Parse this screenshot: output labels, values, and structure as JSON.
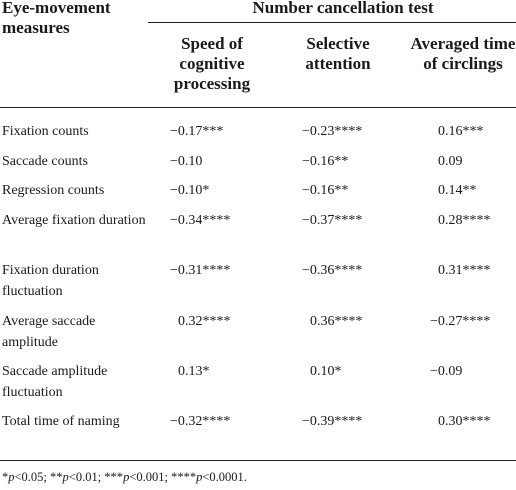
{
  "table": {
    "row_header": "Eye-movement measures",
    "group_header": "Number cancellation test",
    "columns": [
      "Speed of cognitive processing",
      "Selective attention",
      "Averaged time of circlings"
    ],
    "rows": [
      {
        "label": "Fixation counts",
        "values": [
          "−0.17***",
          "−0.23****",
          "0.16***"
        ]
      },
      {
        "label": "Saccade counts",
        "values": [
          "−0.10",
          "−0.16**",
          "0.09"
        ]
      },
      {
        "label": "Regression counts",
        "values": [
          "−0.10*",
          "−0.16**",
          "0.14**"
        ]
      },
      {
        "label": "Average fixation duration",
        "values": [
          "−0.34****",
          "−0.37****",
          "0.28****"
        ]
      },
      {
        "label": "Fixation duration fluctuation",
        "values": [
          "−0.31****",
          "−0.36****",
          "0.31****"
        ]
      },
      {
        "label": "Average saccade amplitude",
        "values": [
          "0.32****",
          "0.36****",
          "−0.27****"
        ]
      },
      {
        "label": "Saccade amplitude fluctuation",
        "values": [
          "0.13*",
          "0.10*",
          "−0.09"
        ]
      },
      {
        "label": "Total time of naming",
        "values": [
          "−0.32****",
          "−0.39****",
          "0.30****"
        ]
      }
    ]
  },
  "footnote": "*p<0.05; **p<0.01; ***p<0.001; ****p<0.0001."
}
